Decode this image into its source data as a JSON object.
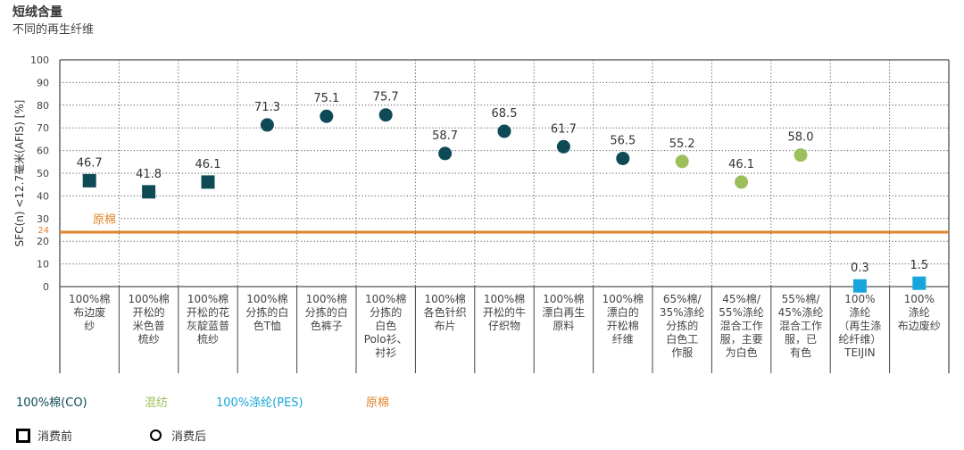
{
  "header": {
    "title": "短绒含量",
    "subtitle": "不同的再生纤维"
  },
  "chart_data": {
    "type": "scatter",
    "title": "短绒含量",
    "subtitle": "不同的再生纤维",
    "ylabel": "SFC(n) <12.7毫米(AFIS) [%]",
    "xlabel": "",
    "ylim": [
      0,
      100
    ],
    "yticks": [
      0,
      10,
      20,
      30,
      40,
      50,
      60,
      70,
      80,
      90,
      100
    ],
    "grid": true,
    "reference_line": {
      "label": "原棉",
      "value": 24,
      "tick_label": "24",
      "color": "#e0852a"
    },
    "categories": [
      "100%棉\n布边废\n纱",
      "100%棉\n开松的\n米色普\n梳纱",
      "100%棉\n开松的花\n灰靛蓝普\n梳纱",
      "100%棉\n分拣的白\n色T恤",
      "100%棉\n分拣的白\n色裤子",
      "100%棉\n分拣的\n白色\nPolo衫、\n衬衫",
      "100%棉\n各色针织\n布片",
      "100%棉\n开松的牛\n仔织物",
      "100%棉\n漂白再生\n原料",
      "100%棉\n漂白的\n开松棉\n纤维",
      "65%棉/\n35%涤纶\n分拣的\n白色工\n作服",
      "45%棉/\n55%涤纶\n混合工作\n服，主要\n为白色",
      "55%棉/\n45%涤纶\n混合工作\n服，已\n有色",
      "100%\n涤纶\n（再生涤\n纶纤维）\nTEIJIN",
      "100%\n涤纶\n布边废纱"
    ],
    "points": [
      {
        "value": 46.7,
        "label": "46.7",
        "shape": "square",
        "group": "cotton"
      },
      {
        "value": 41.8,
        "label": "41.8",
        "shape": "square",
        "group": "cotton"
      },
      {
        "value": 46.1,
        "label": "46.1",
        "shape": "square",
        "group": "cotton"
      },
      {
        "value": 71.3,
        "label": "71.3",
        "shape": "circle",
        "group": "cotton"
      },
      {
        "value": 75.1,
        "label": "75.1",
        "shape": "circle",
        "group": "cotton"
      },
      {
        "value": 75.7,
        "label": "75.7",
        "shape": "circle",
        "group": "cotton"
      },
      {
        "value": 58.7,
        "label": "58.7",
        "shape": "circle",
        "group": "cotton"
      },
      {
        "value": 68.5,
        "label": "68.5",
        "shape": "circle",
        "group": "cotton"
      },
      {
        "value": 61.7,
        "label": "61.7",
        "shape": "circle",
        "group": "cotton"
      },
      {
        "value": 56.5,
        "label": "56.5",
        "shape": "circle",
        "group": "cotton"
      },
      {
        "value": 55.2,
        "label": "55.2",
        "shape": "circle",
        "group": "blend"
      },
      {
        "value": 46.1,
        "label": "46.1",
        "shape": "circle",
        "group": "blend"
      },
      {
        "value": 58.0,
        "label": "58.0",
        "shape": "circle",
        "group": "blend"
      },
      {
        "value": 0.3,
        "label": "0.3",
        "shape": "square",
        "group": "polyester"
      },
      {
        "value": 1.5,
        "label": "1.5",
        "shape": "square",
        "group": "polyester"
      }
    ],
    "colors": {
      "cotton": "#0e4a56",
      "blend": "#9dbf5b",
      "polyester": "#17a6dc",
      "raw_cotton": "#e0852a"
    },
    "legend": {
      "placement": "bottom-left",
      "groups": [
        {
          "key": "cotton",
          "label": "100%棉(CO)"
        },
        {
          "key": "blend",
          "label": "混纺"
        },
        {
          "key": "polyester",
          "label": "100%涤纶(PES)"
        },
        {
          "key": "raw_cotton",
          "label": "原棉"
        }
      ],
      "shapes": [
        {
          "shape": "square",
          "label": "消费前"
        },
        {
          "shape": "circle",
          "label": "消费后"
        }
      ]
    }
  }
}
